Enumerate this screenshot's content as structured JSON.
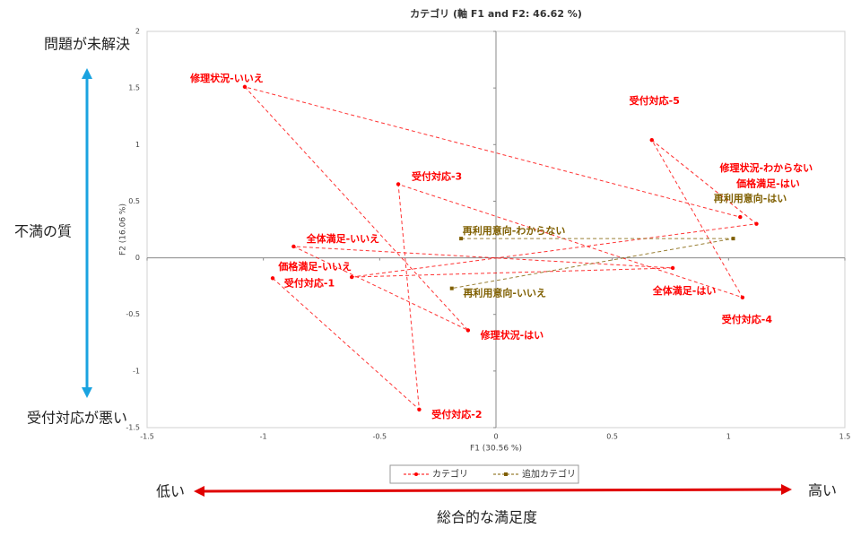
{
  "chart_data": {
    "type": "scatter",
    "title": "カテゴリ (軸 F1 and F2: 46.62 %)",
    "x_label": "F1 (30.56 %)",
    "y_label": "F2 (16.06 %)",
    "xlim": [
      -1.5,
      1.5
    ],
    "xticks": [
      -1.5,
      -1,
      -0.5,
      0,
      0.5,
      1,
      1.5
    ],
    "ylim": [
      -1.5,
      2
    ],
    "yticks": [
      -1.5,
      -1,
      -0.5,
      0,
      0.5,
      1,
      1.5,
      2
    ],
    "series": [
      {
        "name": "カテゴリ",
        "color": "#ff0000",
        "labels": [
          "受付対応-1",
          "受付対応-2",
          "受付対応-3",
          "受付対応-4",
          "受付対応-5",
          "価格満足-はい",
          "価格満足-いいえ",
          "全体満足-はい",
          "全体満足-いいえ",
          "修理状況-はい",
          "修理状況-いいえ",
          "修理状況-わからない"
        ],
        "x": [
          -0.96,
          -0.33,
          -0.42,
          1.06,
          0.67,
          1.12,
          -0.62,
          0.76,
          -0.87,
          -0.12,
          -1.08,
          1.05
        ],
        "y": [
          -0.18,
          -1.34,
          0.65,
          -0.35,
          1.04,
          0.3,
          -0.17,
          -0.09,
          0.1,
          -0.64,
          1.51,
          0.36
        ]
      },
      {
        "name": "追加カテゴリ",
        "color": "#7f5f00",
        "labels": [
          "再利用意向-わからない",
          "再利用意向-はい",
          "再利用意向-いいえ"
        ],
        "x": [
          -0.15,
          1.02,
          -0.19
        ],
        "y": [
          0.17,
          0.17,
          -0.27
        ]
      }
    ],
    "annotations": {
      "top": "問題が未解決",
      "middle": "不満の質",
      "bottom": "受付対応が悪い",
      "left": "低い",
      "right": "高い",
      "x_axis": "総合的な満足度"
    }
  }
}
